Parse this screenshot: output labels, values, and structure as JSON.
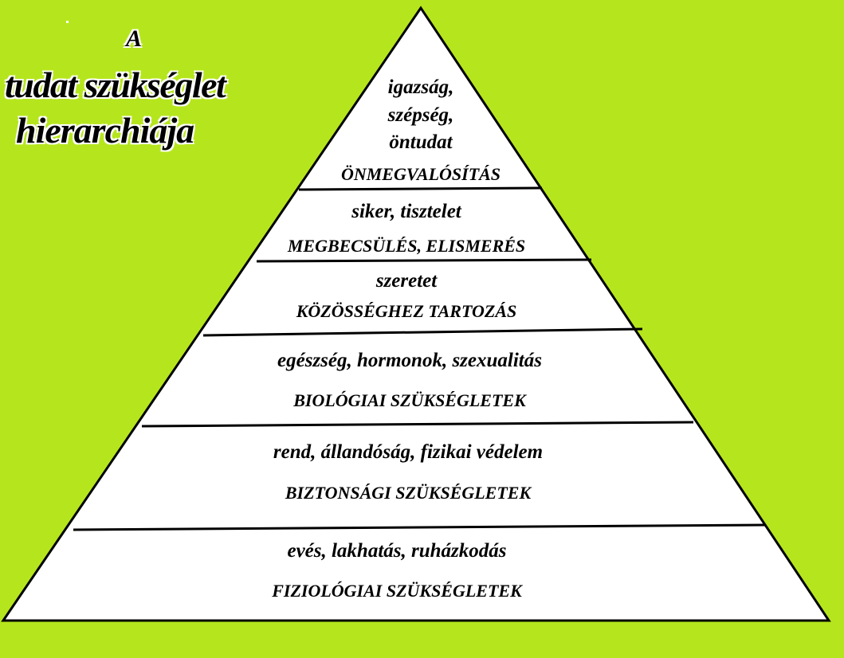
{
  "colors": {
    "background": "#b5e61d",
    "pyramid_fill": "#ffffff",
    "lines": "#000000",
    "text": "#000000"
  },
  "title": {
    "article": "A",
    "line1": "tudat szükséglet",
    "line2": "hierarchiája"
  },
  "levels": [
    {
      "examples": [
        "igazság,",
        "szépség,",
        "öntudat"
      ],
      "name": "ÖNMEGVALÓSÍTÁS"
    },
    {
      "examples": [
        "siker, tisztelet"
      ],
      "name": "MEGBECSÜLÉS, ELISMERÉS"
    },
    {
      "examples": [
        "szeretet"
      ],
      "name": "KÖZÖSSÉGHEZ TARTOZÁS"
    },
    {
      "examples": [
        "egészség, hormonok, szexualitás"
      ],
      "name": "BIOLÓGIAI SZÜKSÉGLETEK"
    },
    {
      "examples": [
        "rend, állandóság, fizikai védelem"
      ],
      "name": "BIZTONSÁGI SZÜKSÉGLETEK"
    },
    {
      "examples": [
        "evés, lakhatás, ruházkodás"
      ],
      "name": "FIZIOLÓGIAI SZÜKSÉGLETEK"
    }
  ]
}
